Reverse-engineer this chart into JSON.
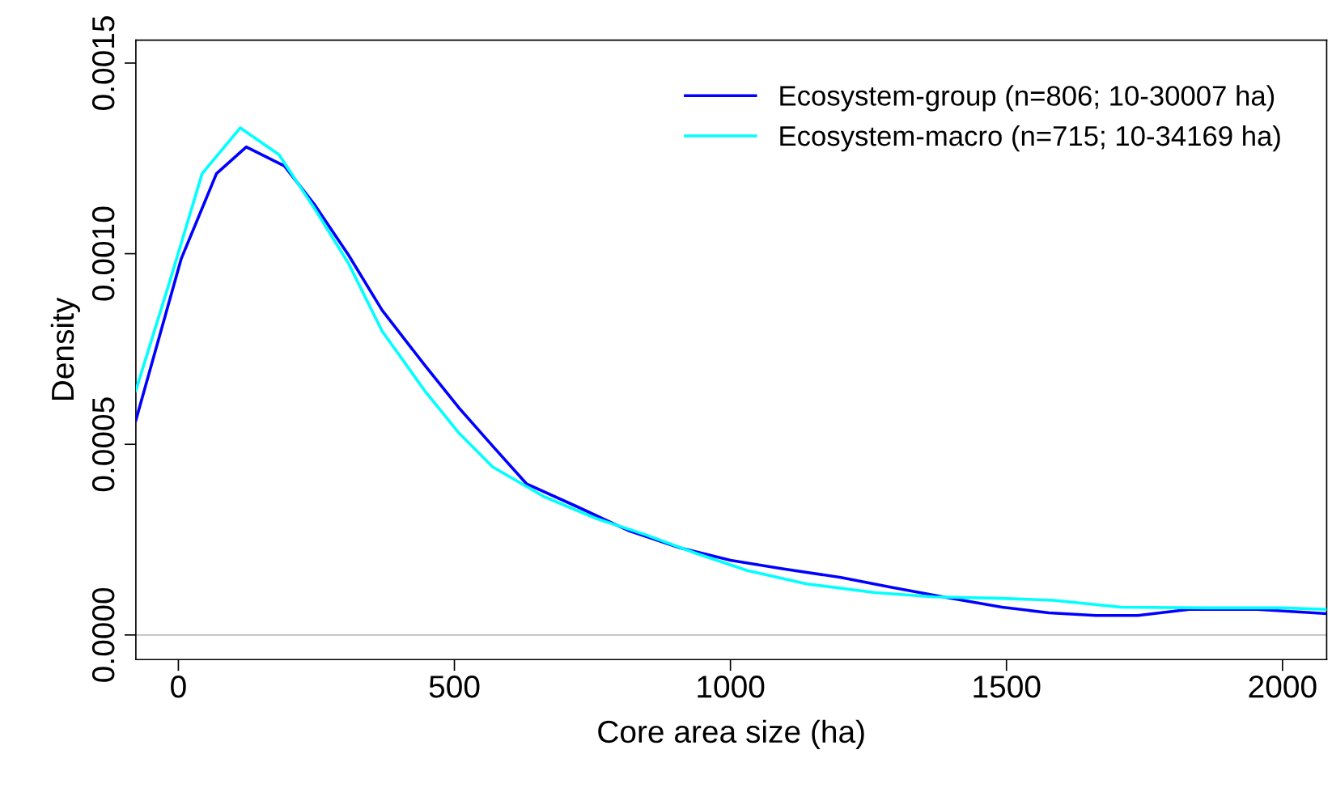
{
  "chart_data": {
    "type": "line",
    "xlabel": "Core area size (ha)",
    "ylabel": "Density",
    "xlim": [
      -77,
      2080
    ],
    "ylim": [
      -6.45e-05,
      0.00156
    ],
    "xticks": [
      0,
      500,
      1000,
      1500,
      2000
    ],
    "yticks": [
      {
        "value": 0,
        "label": "0.0000"
      },
      {
        "value": 0.0005,
        "label": "0.0005"
      },
      {
        "value": 0.001,
        "label": "0.0010"
      },
      {
        "value": 0.0015,
        "label": "0.0015"
      }
    ],
    "grid": false,
    "legend": "top right",
    "marker": "none",
    "line_style": "solid",
    "ref_lines": [
      {
        "axis": "y",
        "value": 0,
        "color": "#bebebe"
      }
    ],
    "series": [
      {
        "name": "Ecosystem-group (n=806; 10-30007 ha)",
        "color": "#0000ff",
        "x": [
          -77,
          5,
          69,
          123,
          192,
          246,
          308,
          369,
          446,
          508,
          569,
          631,
          723,
          815,
          908,
          1000,
          1092,
          1200,
          1292,
          1385,
          1492,
          1577,
          1662,
          1738,
          1831,
          1954,
          2080
        ],
        "values": [
          0.000563,
          0.000986,
          0.00121,
          0.00128,
          0.00123,
          0.00113,
          0.000997,
          0.000852,
          0.000708,
          0.000596,
          0.000496,
          0.000396,
          0.000336,
          0.000274,
          0.000229,
          0.000196,
          0.000174,
          0.000151,
          0.000125,
          0.0001,
          7.3e-05,
          5.8e-05,
          5.1e-05,
          5.1e-05,
          6.7e-05,
          6.7e-05,
          5.6e-05
        ]
      },
      {
        "name": "Ecosystem-macro (n=715; 10-34169 ha)",
        "color": "#00ffff",
        "x": [
          -77,
          -15,
          43,
          112,
          182,
          246,
          308,
          369,
          446,
          508,
          569,
          662,
          754,
          846,
          938,
          1031,
          1138,
          1262,
          1369,
          1492,
          1585,
          1708,
          1862,
          2000,
          2080
        ],
        "values": [
          0.000641,
          0.00093,
          0.00121,
          0.00133,
          0.00126,
          0.00112,
          0.000975,
          0.000797,
          0.000641,
          0.00053,
          0.000441,
          0.000363,
          0.000307,
          0.000263,
          0.000214,
          0.000169,
          0.000134,
          0.000111,
          0.0001,
          9.6e-05,
          9.1e-05,
          7.3e-05,
          7.1e-05,
          7.1e-05,
          6.7e-05
        ]
      }
    ]
  }
}
